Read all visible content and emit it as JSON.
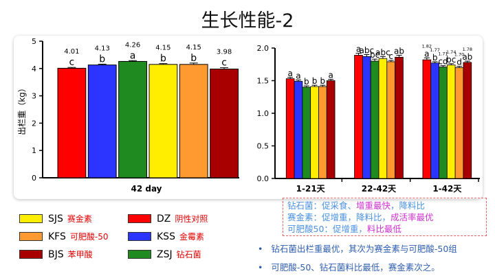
{
  "title": "生长性能-2",
  "chart_data": [
    {
      "type": "bar",
      "ylabel": "出栏重（kg）",
      "xlabel": "42 day",
      "ylim": [
        0,
        5
      ],
      "yticks": [
        "0",
        "1",
        "2",
        "3",
        "4",
        "5"
      ],
      "categories": [
        "DZ",
        "KSS",
        "ZSJ",
        "SJS",
        "KFS",
        "BJS"
      ],
      "colors": [
        "#ff0000",
        "#2c35ff",
        "#1f8a1f",
        "#ffee00",
        "#ff9a30",
        "#a80000"
      ],
      "values": [
        4.01,
        4.13,
        4.26,
        4.15,
        4.15,
        3.98
      ],
      "value_labels": [
        "4.01",
        "4.13",
        "4.26",
        "4.15",
        "4.15",
        "3.98"
      ],
      "letters": [
        "c",
        "b",
        "a",
        "b",
        "b",
        "c"
      ],
      "errors": [
        0.03,
        0.03,
        0.03,
        0.03,
        0.05,
        0.05
      ]
    },
    {
      "type": "bar",
      "ylim": [
        0,
        2.0
      ],
      "yticks": [
        "0.0",
        "0.5",
        "1.0",
        "1.5",
        "2.0"
      ],
      "groups": [
        "1-21天",
        "22-42天",
        "1-42天"
      ],
      "series_order": [
        "DZ",
        "KSS",
        "ZSJ",
        "SJS",
        "KFS",
        "BJS"
      ],
      "colors": [
        "#ff0000",
        "#2c35ff",
        "#1f8a1f",
        "#ffee00",
        "#ff9a30",
        "#a80000"
      ],
      "values": [
        [
          1.53,
          1.49,
          1.4,
          1.41,
          1.41,
          1.5
        ],
        [
          1.89,
          1.87,
          1.8,
          1.84,
          1.79,
          1.86
        ],
        [
          1.82,
          1.77,
          1.71,
          1.74,
          1.7,
          1.78
        ]
      ],
      "errors": [
        [
          0.02,
          0.02,
          0.02,
          0.02,
          0.02,
          0.02
        ],
        [
          0.03,
          0.03,
          0.03,
          0.03,
          0.02,
          0.03
        ],
        [
          0.03,
          0.02,
          0.02,
          0.02,
          0.02,
          0.02
        ]
      ],
      "letters": [
        [
          "a",
          "a",
          "b",
          "b",
          "b",
          "a"
        ],
        [
          "a",
          "abc",
          "bc",
          "abc",
          "c",
          "ab"
        ],
        [
          "a",
          "b",
          "cd",
          "bc",
          "d",
          "ab"
        ]
      ],
      "value_labels": [
        [
          "",
          "",
          "",
          "",
          "",
          ""
        ],
        [
          "",
          "",
          "",
          "",
          "",
          ""
        ],
        [
          "1.82",
          "1.77",
          "1.71",
          "1.74",
          "1.70",
          "1.78"
        ]
      ]
    }
  ],
  "legend": [
    {
      "code": "SJS",
      "name": "赛金素",
      "color": "#ffee00"
    },
    {
      "code": "DZ",
      "name": "阴性对照",
      "color": "#ff0000"
    },
    {
      "code": "KFS",
      "name": "可肥酸-50",
      "color": "#ff9a30"
    },
    {
      "code": "KSS",
      "name": "金霉素",
      "color": "#2c35ff"
    },
    {
      "code": "BJS",
      "name": "苯甲酸",
      "color": "#a80000"
    },
    {
      "code": "ZSJ",
      "name": "钻石菌",
      "color": "#1f8a1f"
    }
  ],
  "note": {
    "line1_a": "钻石菌：促采食、",
    "line1_b": "增重最快",
    "line1_c": "，降料比",
    "line2_a": "赛金素：促增重，降料比，",
    "line2_b": "成活率最优",
    "line3_a": "可肥酸50：促增重，",
    "line3_b": "料比最低"
  },
  "bullets": [
    "钻石菌出栏重最优，其次为赛金素与可肥酸-50组",
    "可肥酸-50、钻石菌料比最低，赛金素次之。"
  ],
  "bullet_marker": "•"
}
